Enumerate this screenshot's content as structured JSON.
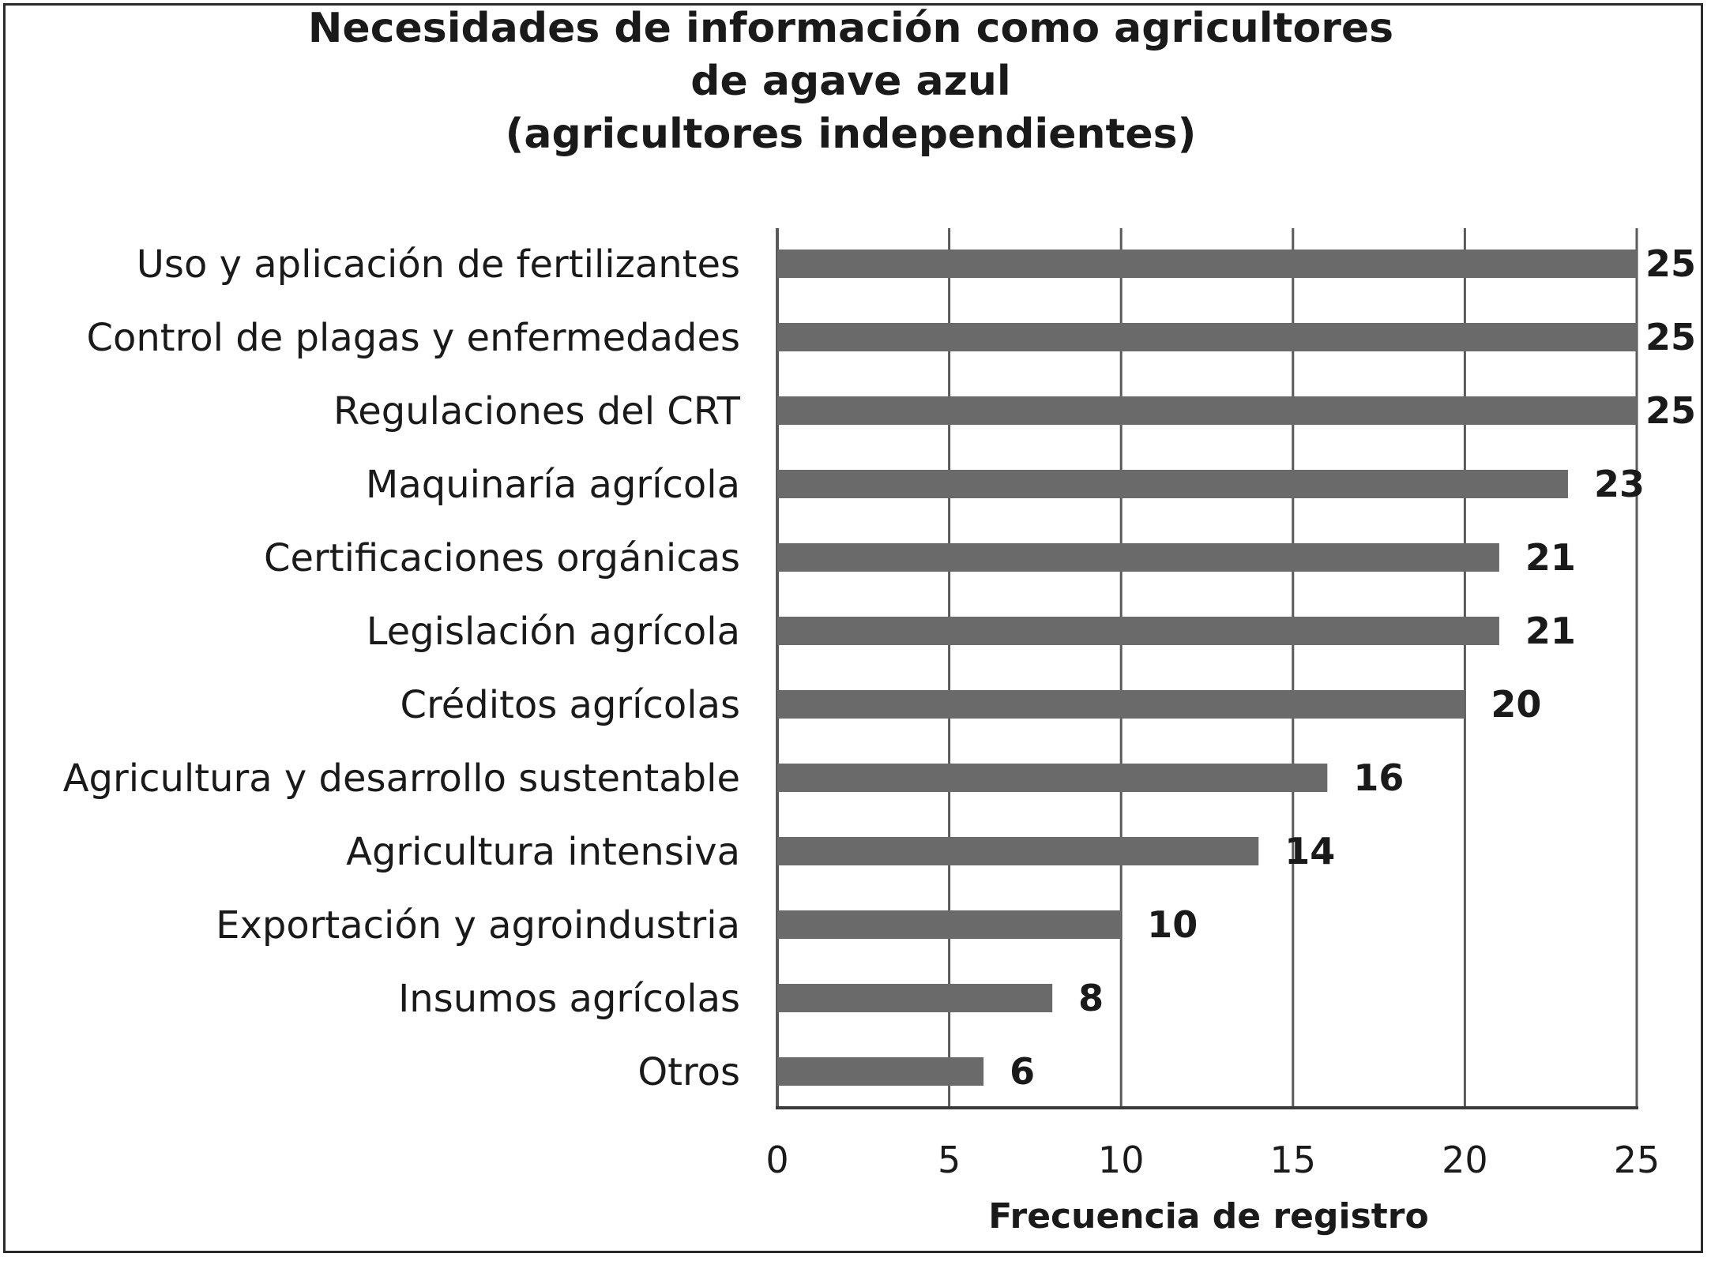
{
  "chart_data": {
    "type": "bar",
    "orientation": "horizontal",
    "title": [
      "Necesidades de información como agricultores",
      "de agave azul",
      "(agricultores independientes)"
    ],
    "xlabel": "Frecuencia de registro",
    "ylabel": "",
    "xlim": [
      0,
      25
    ],
    "xticks": [
      "0",
      "5",
      "10",
      "15",
      "20",
      "25"
    ],
    "grid": true,
    "legend": "none",
    "bar_color": "#6a6a6a",
    "categories": [
      "Uso y aplicación de fertilizantes",
      "Control de plagas y enfermedades",
      "Regulaciones del CRT",
      "Maquinaría agrícola",
      "Certificaciones orgánicas",
      "Legislación agrícola",
      "Créditos agrícolas",
      "Agricultura y desarrollo sustentable",
      "Agricultura intensiva",
      "Exportación y agroindustria",
      "Insumos agrícolas",
      "Otros"
    ],
    "values": [
      25,
      25,
      25,
      23,
      21,
      21,
      20,
      16,
      14,
      10,
      8,
      6
    ],
    "value_labels": [
      "25",
      "25",
      "25",
      "23",
      "21",
      "21",
      "20",
      "16",
      "14",
      "10",
      "8",
      "6"
    ]
  }
}
